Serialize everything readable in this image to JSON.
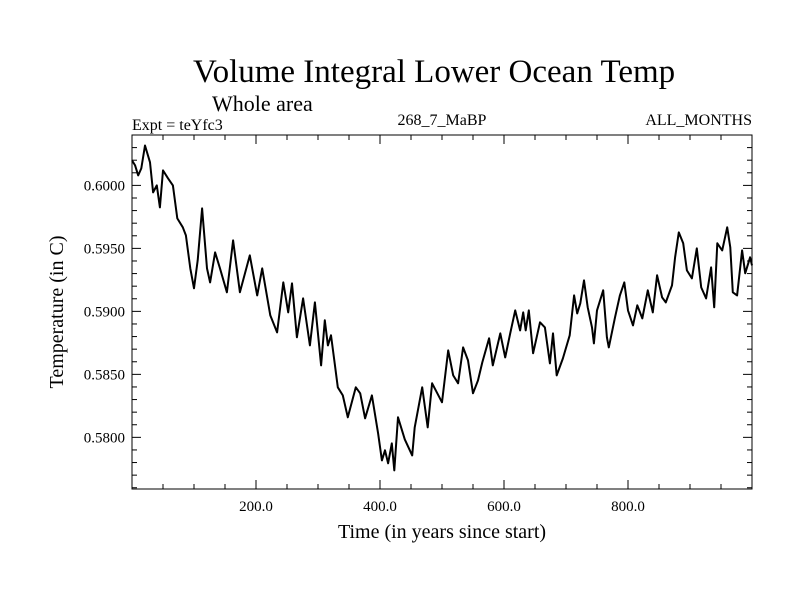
{
  "chart_data": {
    "type": "line",
    "title": "Volume Integral Lower Ocean Temp",
    "subtitle": "Whole area",
    "header_left": "Expt = teYfc3",
    "header_center": "268_7_MaBP",
    "header_right": "ALL_MONTHS",
    "xlabel": "Time (in years since start)",
    "ylabel": "Temperature (in C)",
    "xlim": [
      0,
      1000
    ],
    "ylim": [
      0.5759,
      0.604
    ],
    "grid": false,
    "legend": "none",
    "x_ticks": [
      {
        "value": 200,
        "label": "200.0"
      },
      {
        "value": 400,
        "label": "400.0"
      },
      {
        "value": 600,
        "label": "600.0"
      },
      {
        "value": 800,
        "label": "800.0"
      }
    ],
    "x_minor_step": 50,
    "y_ticks": [
      {
        "value": 0.58,
        "label": "0.5800"
      },
      {
        "value": 0.585,
        "label": "0.5850"
      },
      {
        "value": 0.59,
        "label": "0.5900"
      },
      {
        "value": 0.595,
        "label": "0.5950"
      },
      {
        "value": 0.6,
        "label": "0.6000"
      }
    ],
    "y_minor_step": 0.001,
    "series": [
      {
        "name": "Lower Ocean Temp",
        "color": "#000000",
        "x": [
          0,
          5,
          10,
          15,
          21,
          29,
          34,
          40,
          45,
          50,
          58,
          66,
          73,
          82,
          87,
          94,
          100,
          106,
          113,
          121,
          126,
          134,
          142,
          153,
          163,
          174,
          190,
          202,
          210,
          223,
          234,
          244,
          252,
          258,
          266,
          276,
          287,
          295,
          305,
          311,
          316,
          321,
          327,
          332,
          340,
          348,
          361,
          368,
          376,
          387,
          397,
          403,
          408,
          413,
          419,
          423,
          429,
          440,
          452,
          456,
          468,
          477,
          484,
          500,
          510,
          518,
          526,
          534,
          542,
          550,
          558,
          565,
          576,
          582,
          594,
          602,
          610,
          618,
          626,
          631,
          635,
          640,
          647,
          658,
          666,
          674,
          679,
          685,
          695,
          706,
          713,
          718,
          723,
          729,
          735,
          742,
          745,
          750,
          760,
          766,
          769,
          779,
          787,
          794,
          800,
          808,
          815,
          823,
          832,
          840,
          847,
          855,
          861,
          871,
          876,
          882,
          889,
          895,
          903,
          911,
          918,
          926,
          934,
          939,
          944,
          952,
          960,
          965,
          969,
          976,
          984,
          989,
          997,
          1000
        ],
        "values": [
          0.60198,
          0.60159,
          0.60079,
          0.60135,
          0.60317,
          0.60183,
          0.59944,
          0.6,
          0.59825,
          0.60119,
          0.60056,
          0.6,
          0.59738,
          0.59667,
          0.59603,
          0.59341,
          0.59183,
          0.59405,
          0.59817,
          0.59341,
          0.5923,
          0.59468,
          0.59341,
          0.59151,
          0.59563,
          0.59151,
          0.59444,
          0.59127,
          0.59341,
          0.58968,
          0.58833,
          0.5923,
          0.58992,
          0.59222,
          0.58794,
          0.59103,
          0.5873,
          0.59071,
          0.58571,
          0.58929,
          0.5873,
          0.5881,
          0.58587,
          0.58397,
          0.58333,
          0.58159,
          0.58397,
          0.5835,
          0.58151,
          0.58333,
          0.58032,
          0.57817,
          0.57897,
          0.57794,
          0.57952,
          0.57738,
          0.58159,
          0.57984,
          0.57857,
          0.58079,
          0.58397,
          0.58079,
          0.58429,
          0.58278,
          0.5869,
          0.58492,
          0.58429,
          0.58714,
          0.58611,
          0.5835,
          0.58452,
          0.58595,
          0.58786,
          0.58571,
          0.58825,
          0.58635,
          0.58825,
          0.59008,
          0.58849,
          0.58992,
          0.58849,
          0.59008,
          0.58667,
          0.58913,
          0.58873,
          0.58587,
          0.58825,
          0.58492,
          0.58627,
          0.5881,
          0.59127,
          0.58984,
          0.59064,
          0.59246,
          0.59032,
          0.58873,
          0.58746,
          0.59008,
          0.59167,
          0.58794,
          0.58714,
          0.58952,
          0.59127,
          0.5923,
          0.59008,
          0.58889,
          0.59048,
          0.58944,
          0.59167,
          0.58992,
          0.59286,
          0.59111,
          0.59071,
          0.59206,
          0.59429,
          0.59627,
          0.5954,
          0.59325,
          0.59262,
          0.595,
          0.5919,
          0.59103,
          0.59349,
          0.59032,
          0.5954,
          0.59484,
          0.59667,
          0.59508,
          0.59151,
          0.59127,
          0.59484,
          0.59302,
          0.59429,
          0.59365
        ]
      }
    ]
  }
}
